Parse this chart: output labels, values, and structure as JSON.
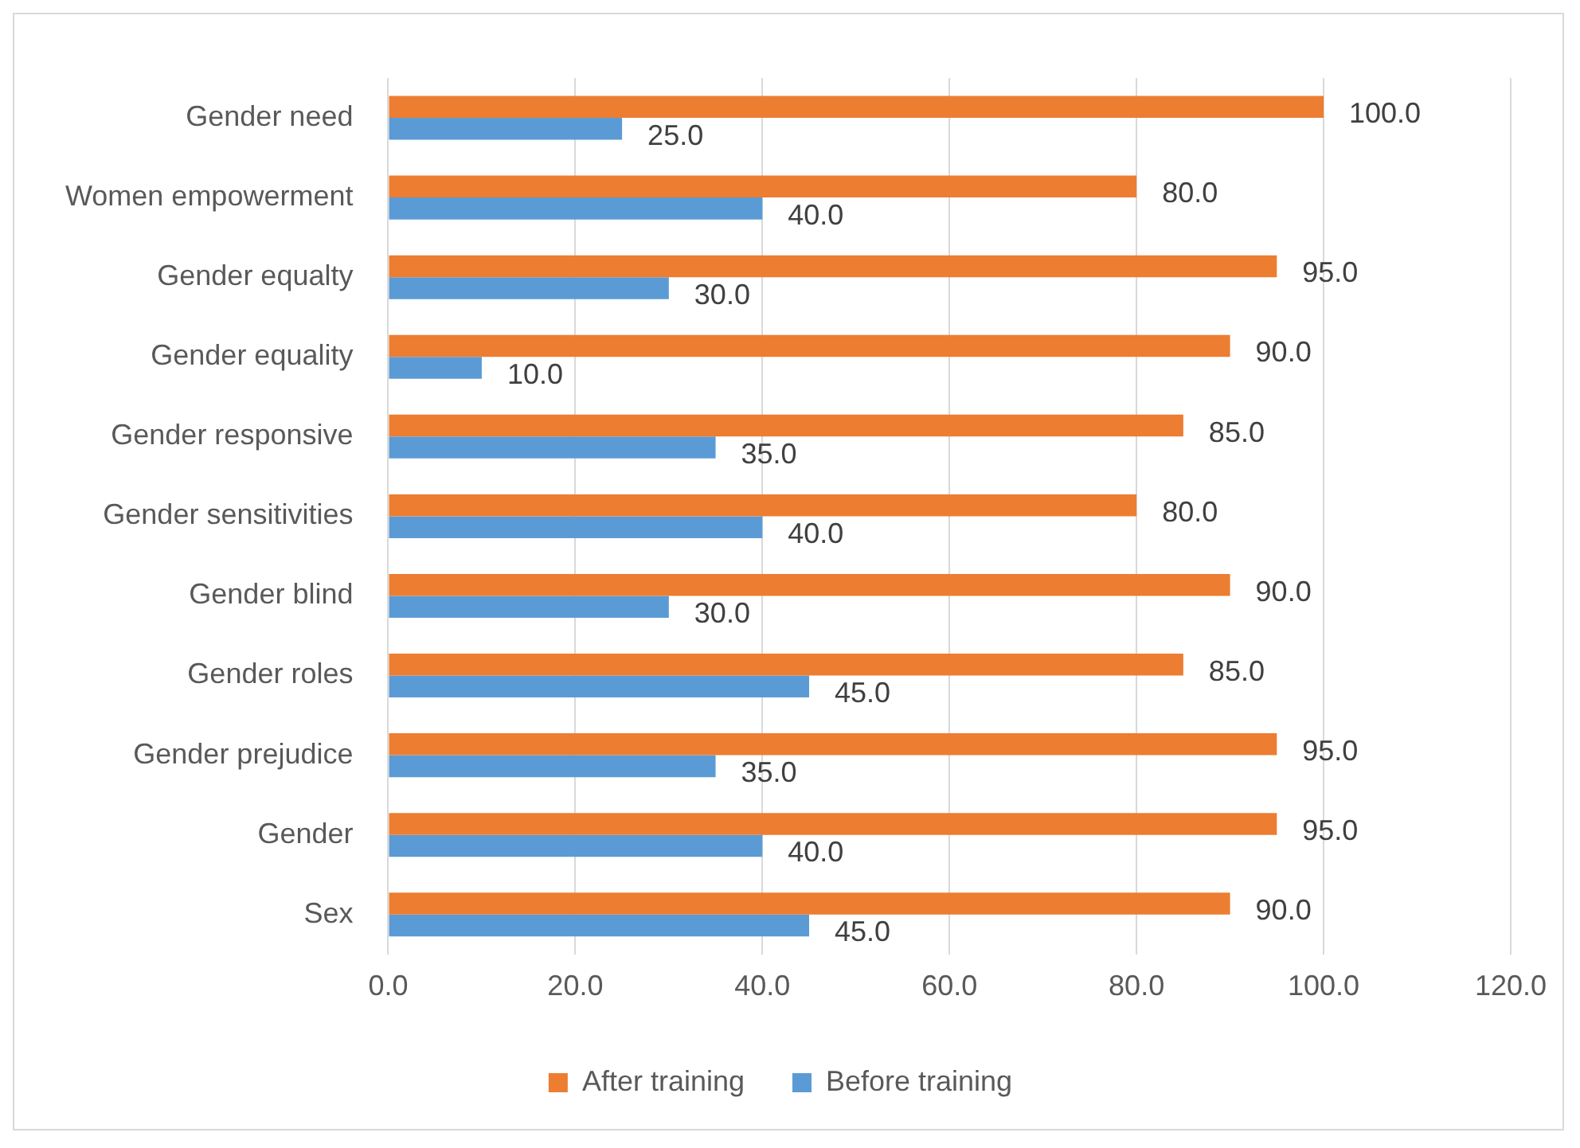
{
  "chart_data": {
    "type": "bar",
    "orientation": "horizontal",
    "categories": [
      "Gender need",
      "Women empowerment",
      "Gender equalty",
      "Gender equality",
      "Gender responsive",
      "Gender sensitivities",
      "Gender blind",
      "Gender roles",
      "Gender prejudice",
      "Gender",
      "Sex"
    ],
    "series": [
      {
        "name": "After training",
        "color": "#ed7d31",
        "values": [
          100,
          80,
          95,
          90,
          85,
          80,
          90,
          85,
          95,
          95,
          90
        ],
        "value_labels": [
          "100.0",
          "80.0",
          "95.0",
          "90.0",
          "85.0",
          "80.0",
          "90.0",
          "85.0",
          "95.0",
          "95.0",
          "90.0"
        ]
      },
      {
        "name": "Before training",
        "color": "#5b9bd5",
        "values": [
          25,
          40,
          30,
          10,
          35,
          40,
          30,
          45,
          35,
          40,
          45
        ],
        "value_labels": [
          "25.0",
          "40.0",
          "30.0",
          "10.0",
          "35.0",
          "40.0",
          "30.0",
          "45.0",
          "35.0",
          "40.0",
          "45.0"
        ]
      }
    ],
    "xlim": [
      0,
      120
    ],
    "xticks": [
      {
        "value": 0,
        "label": "0.0"
      },
      {
        "value": 20,
        "label": "20.0"
      },
      {
        "value": 40,
        "label": "40.0"
      },
      {
        "value": 60,
        "label": "60.0"
      },
      {
        "value": 80,
        "label": "80.0"
      },
      {
        "value": 100,
        "label": "100.0"
      },
      {
        "value": 120,
        "label": "120.0"
      }
    ],
    "grid": "x",
    "legend": "bottom"
  }
}
